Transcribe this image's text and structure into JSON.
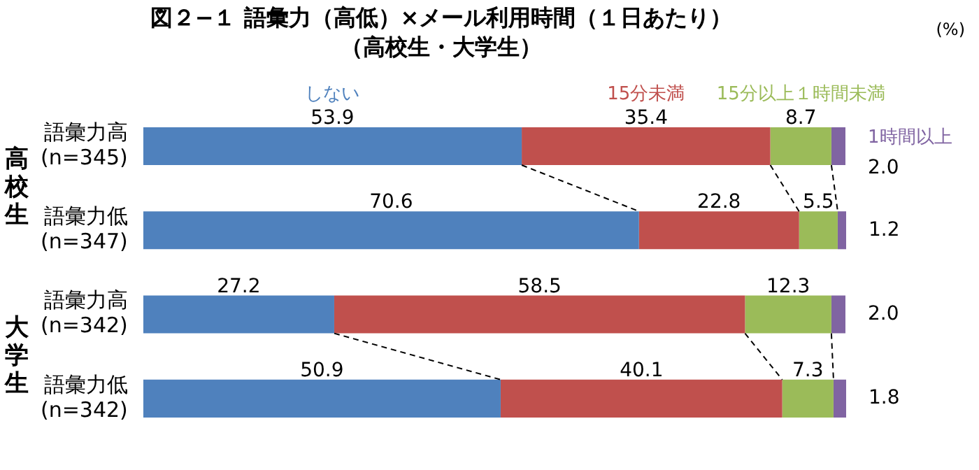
{
  "chart_data": {
    "type": "bar",
    "orientation": "horizontal",
    "stacked": true,
    "title": "図２−１ 語彙力（高低）×メール利用時間（１日あたり）",
    "subtitle": "（高校生・大学生）",
    "categories": [
      "語彙力高\n(n=345)",
      "語彙力低\n(n=347)",
      "語彙力高\n(n=342)",
      "語彙力低\n(n=342)"
    ],
    "series": [
      {
        "name": "しない",
        "color": "#4f81bd",
        "values": [
          53.9,
          70.6,
          27.2,
          50.9
        ],
        "value_labels": [
          "53.9",
          "70.6",
          "27.2",
          "50.9"
        ]
      },
      {
        "name": "15分未満",
        "color": "#c0504d",
        "values": [
          35.4,
          22.8,
          58.5,
          40.1
        ],
        "value_labels": [
          "35.4",
          "22.8",
          "58.5",
          "40.1"
        ]
      },
      {
        "name": "15分以上１時間未満",
        "color": "#9bbb59",
        "values": [
          8.7,
          5.5,
          12.3,
          7.3
        ],
        "value_labels": [
          "8.7",
          "5.5",
          "12.3",
          "7.3"
        ]
      },
      {
        "name": "1時間以上",
        "color": "#8064a2",
        "values": [
          2.0,
          1.2,
          2.0,
          1.8
        ],
        "value_labels": [
          "2.0",
          "1.2",
          "2.0",
          "1.8"
        ]
      }
    ],
    "xlim": [
      0,
      100.1
    ],
    "tick_labels": "y",
    "legend": false,
    "annotations": [
      "高校生",
      "大学生",
      "(%)"
    ]
  }
}
